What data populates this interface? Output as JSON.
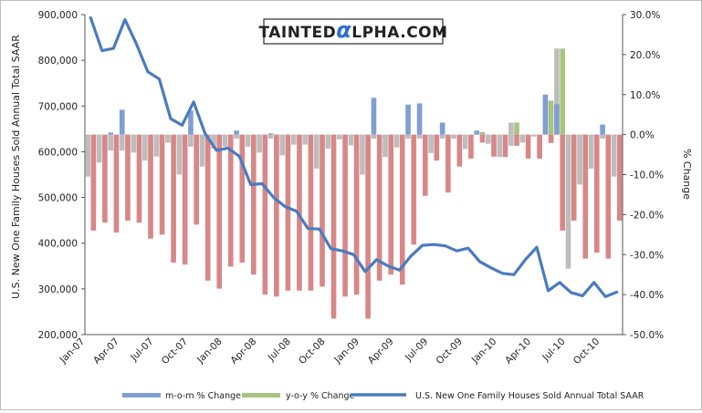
{
  "brand": {
    "prefix": "TAINTED",
    "alpha": "α",
    "suffix": "LPHA.COM",
    "colors": {
      "text": "#111111",
      "alpha": "#2f6fd0"
    }
  },
  "chart_data": {
    "type": "bar+line",
    "left_axis": {
      "label": "U.S. New One Family Houses Sold Annual Total SAAR",
      "min": 200000,
      "max": 900000,
      "step": 100000,
      "ticks": [
        "200,000",
        "300,000",
        "400,000",
        "500,000",
        "600,000",
        "700,000",
        "800,000",
        "900,000"
      ]
    },
    "right_axis": {
      "label": "% Change",
      "min": -50,
      "max": 30,
      "step": 10,
      "ticks": [
        "-50.0%",
        "-40.0%",
        "-30.0%",
        "-20.0%",
        "-10.0%",
        "0.0%",
        "10.0%",
        "20.0%",
        "30.0%"
      ]
    },
    "x_tick_labels": [
      "Jan-07",
      "Apr-07",
      "Jul-07",
      "Oct-07",
      "Jan-08",
      "Apr-08",
      "Jul-08",
      "Oct-08",
      "Jan-09",
      "Apr-09",
      "Jul-09",
      "Oct-09",
      "Jan-10",
      "Apr-10",
      "Jul-10",
      "Oct-10"
    ],
    "months": [
      "Jan-07",
      "Feb-07",
      "Mar-07",
      "Apr-07",
      "May-07",
      "Jun-07",
      "Jul-07",
      "Aug-07",
      "Sep-07",
      "Oct-07",
      "Nov-07",
      "Dec-07",
      "Jan-08",
      "Feb-08",
      "Mar-08",
      "Apr-08",
      "May-08",
      "Jun-08",
      "Jul-08",
      "Aug-08",
      "Sep-08",
      "Oct-08",
      "Nov-08",
      "Dec-08",
      "Jan-09",
      "Feb-09",
      "Mar-09",
      "Apr-09",
      "May-09",
      "Jun-09",
      "Jul-09",
      "Aug-09",
      "Sep-09",
      "Oct-09",
      "Nov-09",
      "Dec-09",
      "Jan-10",
      "Feb-10",
      "Mar-10",
      "Apr-10",
      "May-10",
      "Jun-10",
      "Jul-10",
      "Aug-10",
      "Sep-10",
      "Oct-10",
      "Nov-10"
    ],
    "series": [
      {
        "name": "m-o-m % Change",
        "color": "#7f9fd4",
        "axis": "right",
        "values": [
          -10.5,
          -7,
          0.5,
          6.2,
          -4.5,
          -6.5,
          -5.5,
          -2,
          -10,
          6,
          -8,
          -3.5,
          -3,
          1,
          -3,
          -4.5,
          0.3,
          -5.2,
          -2.5,
          -2.5,
          -8.5,
          -3.5,
          -1.2,
          -2.7,
          -10,
          9.2,
          -5.6,
          -3.2,
          7.5,
          7.8,
          -4.6,
          3,
          -0.5,
          -3.6,
          1,
          -2.3,
          -5.6,
          -2.8,
          -2,
          -0.3,
          10,
          7.6,
          -33.5,
          -12.5,
          -8.5,
          2.5,
          -10.5
        ]
      },
      {
        "name": "y-o-y % Change",
        "color": "#a9c47f",
        "axis": "right",
        "values": [
          -4,
          -4,
          -4,
          -4,
          -3.5,
          -3,
          -2,
          -2,
          -2,
          -3,
          -2,
          -2,
          -2,
          -1,
          -1,
          -1,
          -1,
          -1,
          -1,
          -1,
          -1,
          -1,
          -1,
          -1,
          -1,
          -1,
          -1,
          -1,
          -1,
          -1,
          -1,
          -1,
          -1,
          -1,
          0.6,
          -1,
          -1,
          3,
          -0.5,
          -0.5,
          8.5,
          21.5,
          -1,
          -1,
          -1,
          -1,
          -1
        ]
      },
      {
        "name": "y-o-y % Change (negative)",
        "color": "#d88787",
        "axis": "right",
        "values": [
          -24,
          -22,
          -24.5,
          -21.5,
          -22,
          -26,
          -25,
          -32,
          -32.5,
          -22.5,
          -36.5,
          -38.5,
          -33,
          -32,
          -35,
          -40,
          -40.5,
          -39,
          -39,
          -39,
          -38,
          -46,
          -40.5,
          -40,
          -46,
          -36.5,
          -35,
          -37.5,
          -27.5,
          -15.3,
          -6.5,
          -14.5,
          -8,
          -6,
          -2,
          -5.5,
          -5.6,
          -2.8,
          -6,
          -6,
          -2.1,
          -24,
          -21.5,
          -31,
          -29.5,
          -31,
          -21.5
        ]
      },
      {
        "name": "U.S. New One Family Houses Sold Annual Total SAAR",
        "color": "#4a7bc0",
        "axis": "left",
        "values": [
          893000,
          821000,
          826000,
          889000,
          836000,
          775000,
          759000,
          672000,
          658000,
          709000,
          640000,
          603000,
          608000,
          590000,
          528000,
          530000,
          500000,
          480000,
          470000,
          432000,
          431000,
          388000,
          383000,
          375000,
          338000,
          364000,
          350000,
          341000,
          372000,
          395000,
          397000,
          394000,
          383000,
          389000,
          360000,
          346000,
          334000,
          331000,
          364000,
          391000,
          296000,
          314000,
          292000,
          285000,
          314000,
          283000,
          293000
        ]
      }
    ],
    "legend": {
      "position": "bottom",
      "items": [
        {
          "name": "m-o-m % Change",
          "color": "#7f9fd4",
          "marker": "bar"
        },
        {
          "name": "y-o-y % Change",
          "color": "#a9c47f",
          "marker": "bar"
        },
        {
          "name": "U.S. New One Family Houses Sold Annual Total SAAR",
          "color": "#4a7bc0",
          "marker": "line"
        }
      ]
    },
    "grid": false
  }
}
